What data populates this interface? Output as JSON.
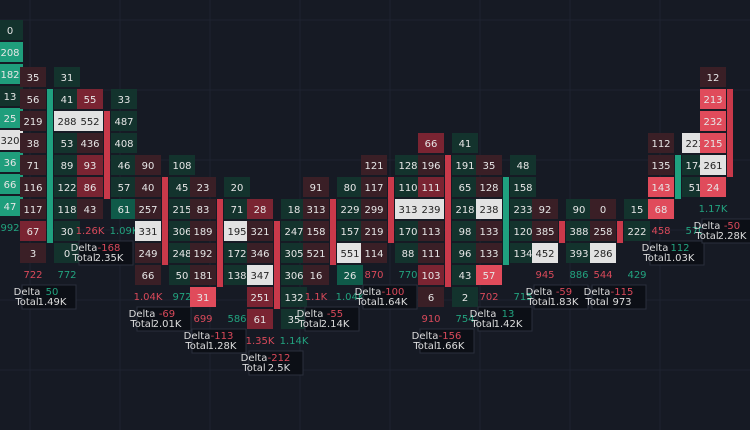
{
  "delta_label": "Delta",
  "total_label": "Total",
  "candles": [
    {
      "bid": [],
      "ask": [
        "0",
        "208",
        "182",
        "13",
        "25",
        "320",
        "36",
        "66",
        "47"
      ],
      "totals": [
        "992"
      ]
    },
    {
      "bid": [
        "35",
        "56",
        "219",
        "38",
        "71",
        "116",
        "117",
        "67",
        "3"
      ],
      "ask": [
        "31",
        "41",
        "288",
        "53",
        "89",
        "122",
        "118",
        "30",
        "0"
      ],
      "totals": [
        "722",
        "772"
      ],
      "delta": "50",
      "total": "1.49K"
    },
    {
      "bid": [
        "55",
        "552",
        "436",
        "93",
        "86",
        "43"
      ],
      "ask": [
        "33",
        "487",
        "408",
        "46",
        "57",
        "61"
      ],
      "totals": [
        "1.26K",
        "1.09K"
      ],
      "delta": "-168",
      "total": "2.35K"
    },
    {
      "bid": [
        "90",
        "40",
        "257",
        "331",
        "249",
        "66"
      ],
      "ask": [
        "108",
        "45",
        "215",
        "306",
        "248",
        "50"
      ],
      "totals": [
        "1.04K",
        "972"
      ],
      "delta": "-69",
      "total": "2.01K"
    },
    {
      "bid": [
        "23",
        "83",
        "189",
        "192",
        "181",
        "31"
      ],
      "ask": [
        "20",
        "71",
        "195",
        "172",
        "138"
      ],
      "totals": [
        "699",
        "586"
      ],
      "delta": "-113",
      "total": "1.28K"
    },
    {
      "bid": [
        "28",
        "321",
        "346",
        "347",
        "251",
        "61"
      ],
      "ask": [
        "18",
        "247",
        "305",
        "306",
        "132",
        "35"
      ],
      "totals": [
        "1.35K",
        "1.14K"
      ],
      "delta": "-212",
      "total": "2.5K"
    },
    {
      "bid": [
        "91",
        "313",
        "158",
        "521",
        "16"
      ],
      "ask": [
        "80",
        "229",
        "157",
        "551",
        "26"
      ],
      "totals": [
        "1.1K",
        "1.04K"
      ],
      "delta": "-55",
      "total": "2.14K"
    },
    {
      "bid": [
        "121",
        "117",
        "299",
        "219",
        "114"
      ],
      "ask": [
        "128",
        "110",
        "313",
        "170",
        "88"
      ],
      "totals": [
        "870",
        "770"
      ],
      "delta": "-100",
      "total": "1.64K"
    },
    {
      "bid": [
        "66",
        "196",
        "111",
        "239",
        "113",
        "111",
        "103",
        "6"
      ],
      "ask": [
        "41",
        "191",
        "65",
        "218",
        "98",
        "96",
        "43",
        "2"
      ],
      "totals": [
        "910",
        "754"
      ],
      "delta": "-156",
      "total": "1.66K"
    },
    {
      "bid": [
        "35",
        "128",
        "238",
        "133",
        "133",
        "57"
      ],
      "ask": [
        "48",
        "158",
        "233",
        "120",
        "134"
      ],
      "totals": [
        "702",
        "715"
      ],
      "delta": "13",
      "total": "1.42K"
    },
    {
      "bid": [
        "92",
        "385",
        "452"
      ],
      "ask": [
        "90",
        "388",
        "393"
      ],
      "totals": [
        "945",
        "886"
      ],
      "delta": "-59",
      "total": "1.83K"
    },
    {
      "bid": [
        "0",
        "258",
        "286"
      ],
      "ask": [
        "15",
        "222"
      ],
      "totals": [
        "544",
        "429"
      ],
      "delta": "-115",
      "total": "973"
    },
    {
      "bid": [
        "112",
        "135",
        "143",
        "68"
      ],
      "ask": [
        "223",
        "174",
        "51"
      ],
      "totals": [
        "458",
        "570"
      ],
      "delta": "112",
      "total": "1.03K"
    },
    {
      "bid": [
        "12",
        "213",
        "232",
        "215",
        "261",
        "24"
      ],
      "ask": [],
      "totals": [
        "1.17K"
      ],
      "delta": "-50",
      "total": "2.28K"
    }
  ]
}
